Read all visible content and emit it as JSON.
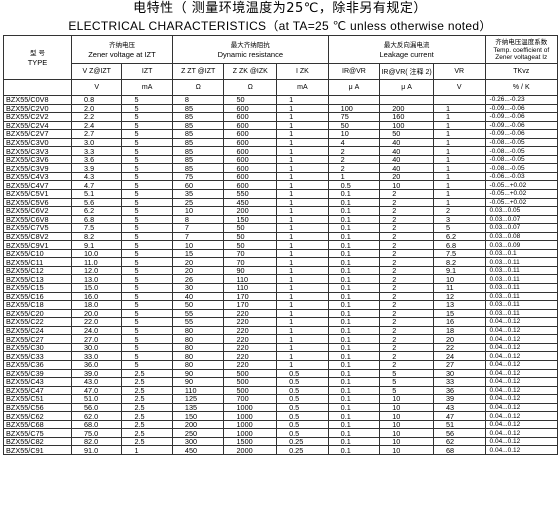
{
  "page": {
    "title_cn": "电特性（ 测量环境温度为25℃，除非另有规定）",
    "title_en": "ELECTRICAL CHARACTERISTICS（at TA=25 ℃ unless otherwise noted）"
  },
  "headers": {
    "type_cn": "型 号",
    "type_en": "TYPE",
    "zener_cn": "齐纳电压",
    "zener_en": "Zener voltage at IZT",
    "dyn_cn": "最大齐纳阻抗",
    "dyn_en": "Dynamic resistance",
    "leak_cn": "最大反向漏电流",
    "leak_en": "Leakage current",
    "temp_cn": "齐纳电压温度系数",
    "temp_en": "Temp. coefficient of Zener voltageat Iz",
    "col_vz": "V Z@IZT",
    "col_izt": "IZT",
    "col_zzt": "Z ZT @IZT",
    "col_zzk": "Z ZK @IZK",
    "col_izk": "I ZK",
    "col_ir1": "IR@VR",
    "col_ir2": "IR@VR( 注释 2)",
    "col_vr": "VR",
    "col_tk": "TKvz",
    "unit_v": "V",
    "unit_ma": "mA",
    "unit_ohm1": "Ω",
    "unit_ohm2": "Ω",
    "unit_ma2": "mA",
    "unit_ua1": "μ A",
    "unit_ua2": "μ A",
    "unit_v2": "V",
    "unit_pk": "% / K"
  },
  "rows": [
    [
      "BZX55/C0V8",
      "0.8",
      "5",
      "8",
      "50",
      "1",
      "",
      "",
      "",
      "-0.26...-0.23"
    ],
    [
      "BZX55/C2V0",
      "2.0",
      "5",
      "85",
      "600",
      "1",
      "100",
      "200",
      "1",
      "-0.09...-0.06"
    ],
    [
      "BZX55/C2V2",
      "2.2",
      "5",
      "85",
      "600",
      "1",
      "75",
      "160",
      "1",
      "-0.09...-0.06"
    ],
    [
      "BZX55/C2V4",
      "2.4",
      "5",
      "85",
      "600",
      "1",
      "50",
      "100",
      "1",
      "-0.09...-0.06"
    ],
    [
      "BZX55/C2V7",
      "2.7",
      "5",
      "85",
      "600",
      "1",
      "10",
      "50",
      "1",
      "-0.09...-0.06"
    ],
    [
      "BZX55/C3V0",
      "3.0",
      "5",
      "85",
      "600",
      "1",
      "4",
      "40",
      "1",
      "-0.08...-0.05"
    ],
    [
      "BZX55/C3V3",
      "3.3",
      "5",
      "85",
      "600",
      "1",
      "2",
      "40",
      "1",
      "-0.08...-0.05"
    ],
    [
      "BZX55/C3V6",
      "3.6",
      "5",
      "85",
      "600",
      "1",
      "2",
      "40",
      "1",
      "-0.08...-0.05"
    ],
    [
      "BZX55/C3V9",
      "3.9",
      "5",
      "85",
      "600",
      "1",
      "2",
      "40",
      "1",
      "-0.08...-0.05"
    ],
    [
      "BZX55/C4V3",
      "4.3",
      "5",
      "75",
      "600",
      "1",
      "1",
      "20",
      "1",
      "-0.06...-0.03"
    ],
    [
      "BZX55/C4V7",
      "4.7",
      "5",
      "60",
      "600",
      "1",
      "0.5",
      "10",
      "1",
      "-0.05...+0.02"
    ],
    [
      "BZX55/C5V1",
      "5.1",
      "5",
      "35",
      "550",
      "1",
      "0.1",
      "2",
      "1",
      "-0.05...+0.02"
    ],
    [
      "BZX55/C5V6",
      "5.6",
      "5",
      "25",
      "450",
      "1",
      "0.1",
      "2",
      "1",
      "-0.05...+0.02"
    ],
    [
      "BZX55/C6V2",
      "6.2",
      "5",
      "10",
      "200",
      "1",
      "0.1",
      "2",
      "2",
      "0.03...0.05"
    ],
    [
      "BZX55/C6V8",
      "6.8",
      "5",
      "8",
      "150",
      "1",
      "0.1",
      "2",
      "3",
      "0.03...0.07"
    ],
    [
      "BZX55/C7V5",
      "7.5",
      "5",
      "7",
      "50",
      "1",
      "0.1",
      "2",
      "5",
      "0.03...0.07"
    ],
    [
      "BZX55/C8V2",
      "8.2",
      "5",
      "7",
      "50",
      "1",
      "0.1",
      "2",
      "6.2",
      "0.03...0.08"
    ],
    [
      "BZX55/C9V1",
      "9.1",
      "5",
      "10",
      "50",
      "1",
      "0.1",
      "2",
      "6.8",
      "0.03...0.09"
    ],
    [
      "BZX55/C10",
      "10.0",
      "5",
      "15",
      "70",
      "1",
      "0.1",
      "2",
      "7.5",
      "0.03...0.1"
    ],
    [
      "BZX55/C11",
      "11.0",
      "5",
      "20",
      "70",
      "1",
      "0.1",
      "2",
      "8.2",
      "0.03...0.11"
    ],
    [
      "BZX55/C12",
      "12.0",
      "5",
      "20",
      "90",
      "1",
      "0.1",
      "2",
      "9.1",
      "0.03...0.11"
    ],
    [
      "BZX55/C13",
      "13.0",
      "5",
      "26",
      "110",
      "1",
      "0.1",
      "2",
      "10",
      "0.03...0.11"
    ],
    [
      "BZX55/C15",
      "15.0",
      "5",
      "30",
      "110",
      "1",
      "0.1",
      "2",
      "11",
      "0.03...0.11"
    ],
    [
      "BZX55/C16",
      "16.0",
      "5",
      "40",
      "170",
      "1",
      "0.1",
      "2",
      "12",
      "0.03...0.11"
    ],
    [
      "BZX55/C18",
      "18.0",
      "5",
      "50",
      "170",
      "1",
      "0.1",
      "2",
      "13",
      "0.03...0.11"
    ],
    [
      "BZX55/C20",
      "20.0",
      "5",
      "55",
      "220",
      "1",
      "0.1",
      "2",
      "15",
      "0.03...0.11"
    ],
    [
      "BZX55/C22",
      "22.0",
      "5",
      "55",
      "220",
      "1",
      "0.1",
      "2",
      "16",
      "0.04...0.12"
    ],
    [
      "BZX55/C24",
      "24.0",
      "5",
      "80",
      "220",
      "1",
      "0.1",
      "2",
      "18",
      "0.04...0.12"
    ],
    [
      "BZX55/C27",
      "27.0",
      "5",
      "80",
      "220",
      "1",
      "0.1",
      "2",
      "20",
      "0.04...0.12"
    ],
    [
      "BZX55/C30",
      "30.0",
      "5",
      "80",
      "220",
      "1",
      "0.1",
      "2",
      "22",
      "0.04...0.12"
    ],
    [
      "BZX55/C33",
      "33.0",
      "5",
      "80",
      "220",
      "1",
      "0.1",
      "2",
      "24",
      "0.04...0.12"
    ],
    [
      "BZX55/C36",
      "36.0",
      "5",
      "80",
      "220",
      "1",
      "0.1",
      "2",
      "27",
      "0.04...0.12"
    ],
    [
      "BZX55/C39",
      "39.0",
      "2.5",
      "90",
      "500",
      "0.5",
      "0.1",
      "5",
      "30",
      "0.04...0.12"
    ],
    [
      "BZX55/C43",
      "43.0",
      "2.5",
      "90",
      "500",
      "0.5",
      "0.1",
      "5",
      "33",
      "0.04...0.12"
    ],
    [
      "BZX55/C47",
      "47.0",
      "2.5",
      "110",
      "500",
      "0.5",
      "0.1",
      "5",
      "36",
      "0.04...0.12"
    ],
    [
      "BZX55/C51",
      "51.0",
      "2.5",
      "125",
      "700",
      "0.5",
      "0.1",
      "10",
      "39",
      "0.04...0.12"
    ],
    [
      "BZX55/C56",
      "56.0",
      "2.5",
      "135",
      "1000",
      "0.5",
      "0.1",
      "10",
      "43",
      "0.04...0.12"
    ],
    [
      "BZX55/C62",
      "62.0",
      "2.5",
      "150",
      "1000",
      "0.5",
      "0.1",
      "10",
      "47",
      "0.04...0.12"
    ],
    [
      "BZX55/C68",
      "68.0",
      "2.5",
      "200",
      "1000",
      "0.5",
      "0.1",
      "10",
      "51",
      "0.04...0.12"
    ],
    [
      "BZX55/C75",
      "75.0",
      "2.5",
      "250",
      "1000",
      "0.5",
      "0.1",
      "10",
      "56",
      "0.04...0.12"
    ],
    [
      "BZX55/C82",
      "82.0",
      "2.5",
      "300",
      "1500",
      "0.25",
      "0.1",
      "10",
      "62",
      "0.04...0.12"
    ],
    [
      "BZX55/C91",
      "91.0",
      "1",
      "450",
      "2000",
      "0.25",
      "0.1",
      "10",
      "68",
      "0.04...0.12"
    ]
  ]
}
